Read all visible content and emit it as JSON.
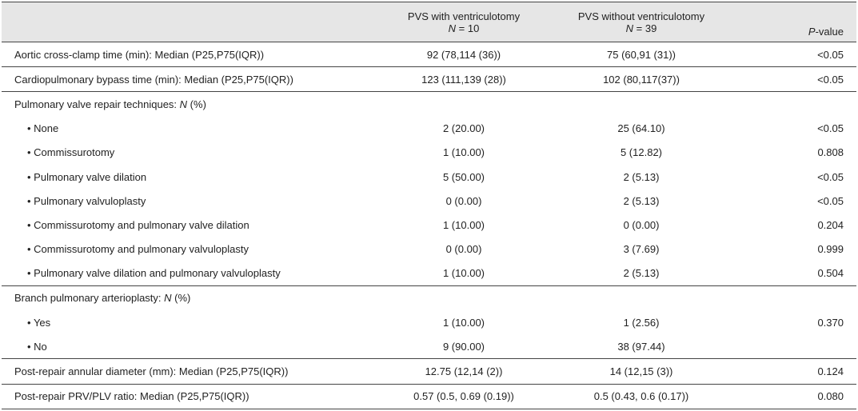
{
  "table": {
    "columns": [
      {
        "title": "PVS with ventriculotomy",
        "n": [
          "N",
          " = 10"
        ]
      },
      {
        "title": "PVS without ventriculotomy",
        "n": [
          "N",
          " = 39"
        ]
      },
      {
        "n": [
          "P",
          "-value"
        ]
      }
    ],
    "rows": [
      {
        "label": [
          "Aortic cross-clamp time (min): Median (P25,P75(IQR))"
        ],
        "with": "92 (78,114 (36))",
        "without": "75 (60,91 (31))",
        "p": "<0.05"
      },
      {
        "label": [
          "Cardiopulmonary bypass time (min): Median (P25,P75(IQR))"
        ],
        "with": "123 (111,139 (28))",
        "without": "102 (80,117(37))",
        "p": "<0.05"
      },
      {
        "label": [
          "Pulmonary valve repair techniques: ",
          "N",
          " (%)"
        ],
        "items": [
          {
            "label": "None",
            "with": "2 (20.00)",
            "without": "25 (64.10)",
            "p": "<0.05"
          },
          {
            "label": "Commissurotomy",
            "with": "1 (10.00)",
            "without": "5 (12.82)",
            "p": "0.808"
          },
          {
            "label": "Pulmonary valve dilation",
            "with": "5 (50.00)",
            "without": "2 (5.13)",
            "p": "<0.05"
          },
          {
            "label": "Pulmonary valvuloplasty",
            "with": "0 (0.00)",
            "without": "2 (5.13)",
            "p": "<0.05"
          },
          {
            "label": "Commissurotomy and pulmonary valve dilation",
            "with": "1 (10.00)",
            "without": "0 (0.00)",
            "p": "0.204"
          },
          {
            "label": "Commissurotomy and pulmonary valvuloplasty",
            "with": "0 (0.00)",
            "without": "3 (7.69)",
            "p": "0.999"
          },
          {
            "label": "Pulmonary valve dilation and pulmonary valvuloplasty",
            "with": "1 (10.00)",
            "without": "2 (5.13)",
            "p": "0.504"
          }
        ]
      },
      {
        "label": [
          "Branch pulmonary arterioplasty: ",
          "N",
          " (%)"
        ],
        "items": [
          {
            "label": "Yes",
            "with": "1 (10.00)",
            "without": "1 (2.56)",
            "p": "0.370"
          },
          {
            "label": "No",
            "with": "9 (90.00)",
            "without": "38 (97.44)"
          }
        ]
      },
      {
        "label": [
          "Post-repair annular diameter (mm): Median (P25,P75(IQR))"
        ],
        "with": "12.75 (12,14 (2))",
        "without": "14 (12,15 (3))",
        "p": "0.124"
      },
      {
        "label": [
          "Post-repair PRV/PLV ratio: Median (P25,P75(IQR))"
        ],
        "with": "0.57 (0.5, 0.69 (0.19))",
        "without": "0.5 (0.43, 0.6 (0.17))",
        "p": "0.080"
      }
    ]
  }
}
